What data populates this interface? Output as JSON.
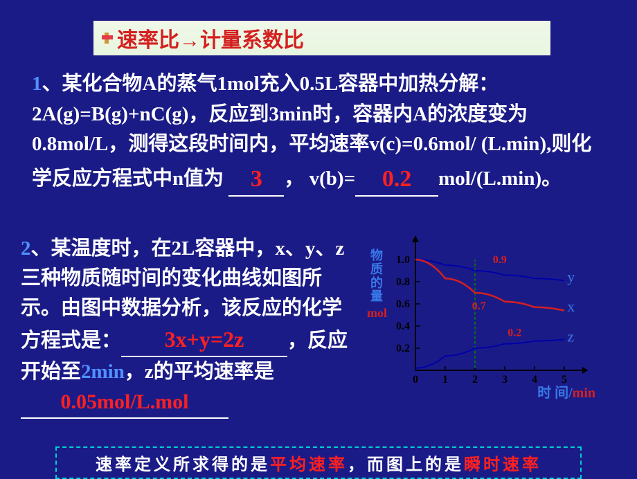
{
  "header": {
    "title": "速率比→计量系数比"
  },
  "problem1": {
    "number": "1",
    "text_a": "、某化合物A的蒸气1mol充入0.5L容器中加热分解：2A(g)=B(g)+nC(g)，反应到3min时，容器内A的浓度变为0.8mol/L，测得这段时间内，平均速率v(c)=0.6mol/ (L.min),则化学反应方程式中n值为",
    "answer1": "3",
    "mid": "， v(b)=",
    "answer2": "0.2",
    "tail": "mol/(L.min)。"
  },
  "problem2": {
    "number": "2",
    "text_a": "、某温度时，在2L容器中，x、y、z三种物质随时间的变化曲线如图所示。由图中数据分析，该反应的化学方程式是：",
    "answer1": "3x+y=2z",
    "mid": "，反应开始至",
    "time": "2min",
    "text_b": "，z的平均速率是",
    "answer2": "0.05mol/L.mol"
  },
  "chart": {
    "y_axis_label": "物质的量",
    "y_axis_unit": "mol",
    "x_axis_label": "时 间/",
    "x_axis_unit": "min",
    "y_ticks": [
      "0.2",
      "0.4",
      "0.6",
      "0.8",
      "1.0"
    ],
    "x_ticks": [
      "0",
      "1",
      "2",
      "3",
      "4",
      "5"
    ],
    "annotations": {
      "y_end": "0.9",
      "x_end": "0.7",
      "z_end": "0.2"
    },
    "series_labels": {
      "y": "y",
      "x": "x",
      "z": "z"
    },
    "colors": {
      "axis": "#000000",
      "curve_x": "#d42020",
      "curve_y": "#0000aa",
      "curve_z": "#0000aa",
      "dash": "#008800",
      "anno": "#d42020",
      "label": "#3878e8"
    },
    "curves": {
      "y": [
        [
          0,
          1.0
        ],
        [
          1,
          0.95
        ],
        [
          2,
          0.9
        ],
        [
          3,
          0.86
        ],
        [
          4,
          0.83
        ],
        [
          5,
          0.81
        ]
      ],
      "x": [
        [
          0,
          1.0
        ],
        [
          1,
          0.83
        ],
        [
          2,
          0.7
        ],
        [
          3,
          0.62
        ],
        [
          4,
          0.57
        ],
        [
          5,
          0.54
        ]
      ],
      "z": [
        [
          0,
          0.02
        ],
        [
          1,
          0.13
        ],
        [
          2,
          0.2
        ],
        [
          3,
          0.24
        ],
        [
          4,
          0.265
        ],
        [
          5,
          0.28
        ]
      ]
    },
    "plot": {
      "ox": 70,
      "oy": 195,
      "x_scale": 43,
      "y_scale": 160
    }
  },
  "footer": {
    "pre": "速率定义所求得的是",
    "red1": "平均速率",
    "mid": "，而图上的是",
    "red2": "瞬时速率"
  }
}
